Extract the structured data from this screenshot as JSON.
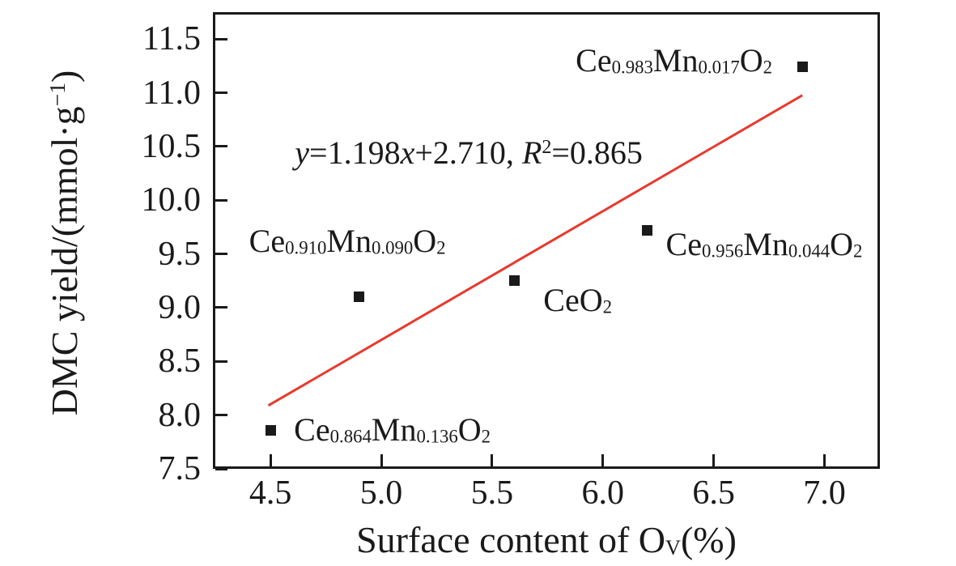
{
  "chart_data": {
    "type": "scatter",
    "title": "",
    "xlabel": "Surface content of O_{V}(%)",
    "ylabel": "DMC yield/(mmol·g^{−1})",
    "xlim": [
      4.24,
      7.25
    ],
    "ylim": [
      7.5,
      11.75
    ],
    "x_ticks": [
      4.5,
      5.0,
      5.5,
      6.0,
      6.5,
      7.0
    ],
    "y_ticks": [
      7.5,
      8.0,
      8.5,
      9.0,
      9.5,
      10.0,
      10.5,
      11.0,
      11.5
    ],
    "grid": false,
    "legend": "none",
    "background": "#ffffff",
    "axis_color": "#1a1a1a",
    "marker": {
      "shape": "square",
      "color": "#1a1a1a",
      "size": 13
    },
    "points": [
      {
        "label": "Ce_{0.864}Mn_{0.136}O_{2}",
        "x": 4.5,
        "y": 7.86,
        "label_offset": [
          29,
          -21
        ]
      },
      {
        "label": "Ce_{0.910}Mn_{0.090}O_{2}",
        "x": 4.9,
        "y": 9.1,
        "label_offset": [
          -136,
          -90
        ]
      },
      {
        "label": "CeO_{2}",
        "x": 5.6,
        "y": 9.25,
        "label_offset": [
          36,
          3
        ]
      },
      {
        "label": "Ce_{0.956}Mn_{0.044}O_{2}",
        "x": 6.2,
        "y": 9.72,
        "label_offset": [
          23,
          -3
        ]
      },
      {
        "label": "Ce_{0.983}Mn_{0.017}O_{2}",
        "x": 6.9,
        "y": 11.24,
        "label_offset": [
          -280,
          -29
        ]
      }
    ],
    "fit_line": {
      "equation": "*y*=1.198*x*+2.710, *R*^{2}=0.865",
      "slope": 1.198,
      "intercept": 2.71,
      "r_squared": 0.865,
      "x_start": 4.49,
      "x_end": 6.9,
      "color": "#e8392e",
      "equation_pos": [
        4.61,
        10.6
      ]
    }
  }
}
